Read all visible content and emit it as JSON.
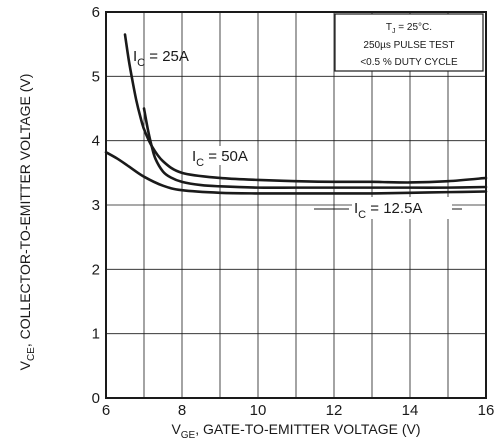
{
  "chart_data": {
    "type": "line",
    "title": "",
    "xlabel": {
      "symbol": "V",
      "subscript": "GE",
      "text": ", GATE-TO-EMITTER VOLTAGE (V)"
    },
    "ylabel": {
      "symbol": "V",
      "subscript": "CE",
      "text": ", COLLECTOR-TO-EMITTER VOLTAGE (V)"
    },
    "xlim": [
      6,
      16
    ],
    "ylim": [
      0,
      6
    ],
    "xticks": [
      "6",
      "8",
      "10",
      "12",
      "14",
      "16"
    ],
    "yticks": [
      "0",
      "1",
      "2",
      "3",
      "4",
      "5",
      "6"
    ],
    "grid": true,
    "note": {
      "line1_symbol": "T",
      "line1_subscript": "J",
      "line1_text": " = 25°C.",
      "line2": "250µs PULSE TEST",
      "line3": "<0.5 % DUTY CYCLE"
    },
    "series": [
      {
        "label_symbol": "I",
        "label_subscript": "C",
        "label_text": " = 25A",
        "x": [
          6.5,
          6.6,
          6.7,
          6.8,
          6.9,
          7.0,
          7.2,
          7.5,
          8.0,
          9.0,
          10.0,
          11.0,
          12.0,
          13.0,
          14.0,
          15.0,
          16.0
        ],
        "y": [
          5.65,
          5.25,
          4.92,
          4.62,
          4.38,
          4.18,
          3.92,
          3.68,
          3.5,
          3.42,
          3.39,
          3.37,
          3.36,
          3.36,
          3.35,
          3.37,
          3.42
        ]
      },
      {
        "label_symbol": "I",
        "label_subscript": "C",
        "label_text": " = 50A",
        "x": [
          7.0,
          7.1,
          7.2,
          7.3,
          7.5,
          7.7,
          8.0,
          8.5,
          9.0,
          10.0,
          11.0,
          12.0,
          13.0,
          14.0,
          15.0,
          16.0
        ],
        "y": [
          4.5,
          4.18,
          3.92,
          3.72,
          3.52,
          3.43,
          3.36,
          3.31,
          3.29,
          3.27,
          3.27,
          3.27,
          3.27,
          3.27,
          3.27,
          3.28
        ]
      },
      {
        "label_symbol": "I",
        "label_subscript": "C",
        "label_text": " = 12.5A",
        "x": [
          6.0,
          6.3,
          6.6,
          7.0,
          7.5,
          8.0,
          9.0,
          10.0,
          11.0,
          12.0,
          13.0,
          14.0,
          15.0,
          16.0
        ],
        "y": [
          3.82,
          3.72,
          3.6,
          3.44,
          3.3,
          3.23,
          3.19,
          3.18,
          3.18,
          3.18,
          3.18,
          3.19,
          3.2,
          3.21
        ]
      }
    ]
  }
}
